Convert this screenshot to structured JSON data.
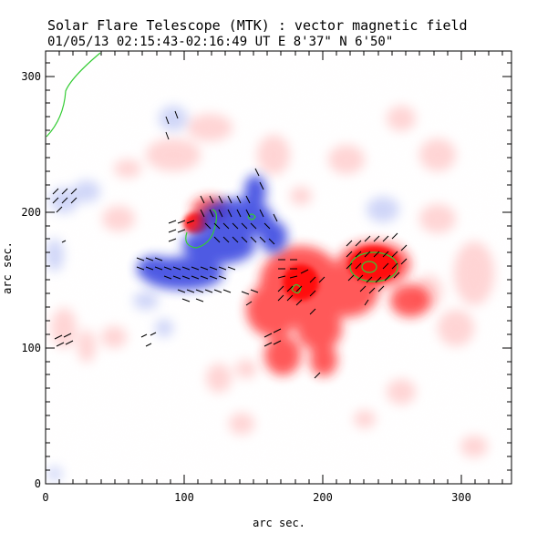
{
  "title": "Solar Flare Telescope (MTK) : vector magnetic field",
  "subtitle": "01/05/13  02:15:43-02:16:49 UT    E 8'37\"  N 6'50\"",
  "x_axis": {
    "label": "arc sec.",
    "ticks": [
      "0",
      "100",
      "200",
      "300"
    ],
    "range": [
      0,
      340
    ]
  },
  "y_axis": {
    "label": "arc sec.",
    "ticks": [
      "0",
      "100",
      "200",
      "300"
    ],
    "range": [
      0,
      318
    ]
  },
  "colors": {
    "positive_polarity": "#ff3333",
    "negative_polarity": "#3344ee",
    "contour": "#33cc33",
    "vector": "#000000"
  }
}
